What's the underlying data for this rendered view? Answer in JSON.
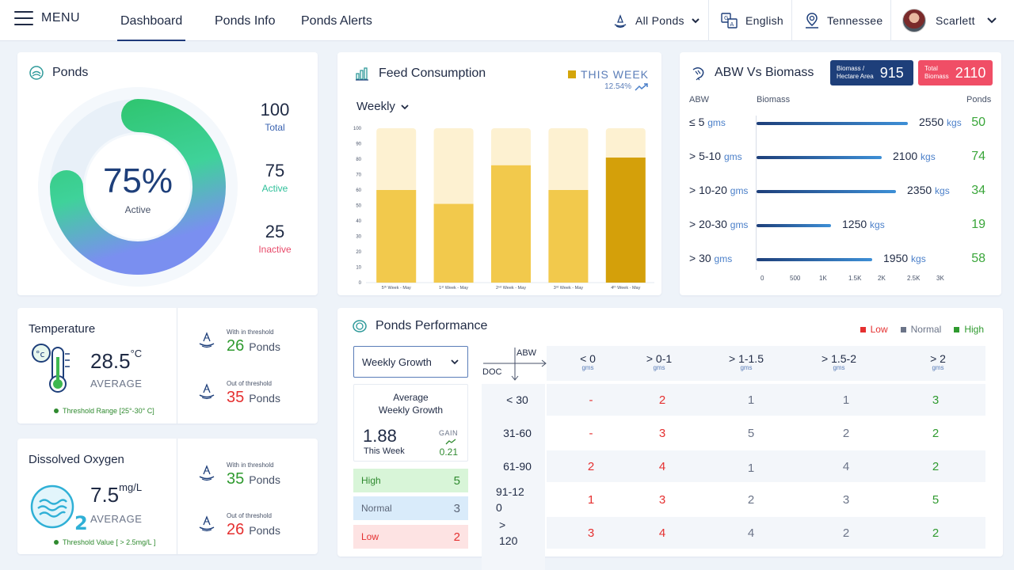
{
  "header": {
    "menu_label": "MENU",
    "tabs": [
      {
        "label": "Dashboard"
      },
      {
        "label": "Ponds Info"
      },
      {
        "label": "Ponds Alerts"
      }
    ],
    "pond_filter": "All Ponds",
    "language": "English",
    "location": "Tennessee",
    "user_name": "Scarlett"
  },
  "ponds": {
    "title": "Ponds",
    "active_percent": "75%",
    "active_percent_value": 75,
    "active_percent_label": "Active",
    "total_value": "100",
    "total_label": "Total",
    "active_value": "75",
    "active_label": "Active",
    "inactive_value": "25",
    "inactive_label": "Inactive",
    "colors": {
      "active_start": "#2fc56f",
      "active_end": "#6f8ff0",
      "track": "#e6eef8",
      "inactive_label": "#e84a6a",
      "active_label": "#2fc09a"
    }
  },
  "feed": {
    "title": "Feed Consumption",
    "legend_label": "THIS WEEK",
    "change_percent": "12.54%",
    "period_select": "Weekly",
    "colors": {
      "bar": "#f2c94c",
      "bar_bg": "#fdf1d1",
      "bar_highlight": "#d4a00a"
    }
  },
  "abw": {
    "title": "ABW Vs Biomass",
    "badge_biomass_label_1": "Biomass /",
    "badge_biomass_label_2": "Hectare Area",
    "badge_biomass_value": "915",
    "badge_total_label_1": "Total",
    "badge_total_label_2": "Biomass",
    "badge_total_value": "2110",
    "col_abw": "ABW",
    "col_biomass": "Biomass",
    "col_ponds": "Ponds",
    "unit_gms": "gms",
    "unit_kgs": "kgs",
    "rows": [
      {
        "range": "≤ 5",
        "biomass": "2550",
        "ponds": "50"
      },
      {
        "range": "> 5-10",
        "biomass": "2100",
        "ponds": "74"
      },
      {
        "range": "> 10-20",
        "biomass": "2350",
        "ponds": "34"
      },
      {
        "range": "> 20-30",
        "biomass": "1250",
        "ponds": "19"
      },
      {
        "range": "> 30",
        "biomass": "1950",
        "ponds": "58"
      }
    ],
    "biomass_values": [
      2550,
      2100,
      2350,
      1250,
      1950
    ],
    "axis_ticks": [
      "0",
      "500",
      "1K",
      "1.5K",
      "2K",
      "2.5K",
      "3K"
    ],
    "axis_max": 3000
  },
  "temperature": {
    "title": "Temperature",
    "value": "28.5",
    "unit": "°C",
    "avg_label": "AVERAGE",
    "range_text": "Threshold Range [25°-30° C]",
    "within_label": "With in threshold",
    "within_value": "26",
    "out_label": "Out of threshold",
    "out_value": "35",
    "ponds_word": "Ponds"
  },
  "dissolved_oxygen": {
    "title": "Dissolved Oxygen",
    "value": "7.5",
    "unit": "mg/L",
    "avg_label": "AVERAGE",
    "range_text": "Threshold Value [ > 2.5mg/L ]",
    "within_label": "With in threshold",
    "within_value": "35",
    "out_label": "Out of threshold",
    "out_value": "26",
    "ponds_word": "Ponds"
  },
  "performance": {
    "title": "Ponds Performance",
    "legend": [
      {
        "label": "Low",
        "color": "#e53030"
      },
      {
        "label": "Normal",
        "color": "#6b7488"
      },
      {
        "label": "High",
        "color": "#2f9a2f"
      }
    ],
    "select_value": "Weekly Growth",
    "avg_heading_1": "Average",
    "avg_heading_2": "Weekly Growth",
    "avg_value": "1.88",
    "avg_sub": "This Week",
    "gain_label": "GAIN",
    "gain_value": "0.21",
    "levels": [
      {
        "label": "High",
        "count": "5",
        "bg": "#d8f5d8",
        "fg": "#2f8a2f"
      },
      {
        "label": "Normal",
        "count": "3",
        "bg": "#d9ebfa",
        "fg": "#5b6577"
      },
      {
        "label": "Low",
        "count": "2",
        "bg": "#fde3e3",
        "fg": "#e53030"
      }
    ],
    "axis_abw": "ABW",
    "axis_doc": "DOC",
    "columns": [
      {
        "label": "< 0",
        "unit": "gms"
      },
      {
        "label": "> 0-1",
        "unit": "gms"
      },
      {
        "label": "> 1-1.5",
        "unit": "gms"
      },
      {
        "label": "> 1.5-2",
        "unit": "gms"
      },
      {
        "label": "> 2",
        "unit": "gms"
      }
    ],
    "rows": [
      {
        "doc": "< 30",
        "cells": [
          {
            "v": "-",
            "s": "low"
          },
          {
            "v": "2",
            "s": "low"
          },
          {
            "v": "1",
            "s": "normal"
          },
          {
            "v": "1",
            "s": "normal"
          },
          {
            "v": "3",
            "s": "high"
          }
        ]
      },
      {
        "doc": "31-60",
        "cells": [
          {
            "v": "-",
            "s": "low"
          },
          {
            "v": "3",
            "s": "low"
          },
          {
            "v": "5",
            "s": "normal"
          },
          {
            "v": "2",
            "s": "normal"
          },
          {
            "v": "2",
            "s": "high"
          }
        ]
      },
      {
        "doc": "61-90",
        "cells": [
          {
            "v": "2",
            "s": "low"
          },
          {
            "v": "4",
            "s": "low"
          },
          {
            "v": "1",
            "s": "normal"
          },
          {
            "v": "4",
            "s": "normal"
          },
          {
            "v": "2",
            "s": "high"
          }
        ]
      },
      {
        "doc_l1": "91-12",
        "doc_l2": "0",
        "cells": [
          {
            "v": "1",
            "s": "low"
          },
          {
            "v": "3",
            "s": "low"
          },
          {
            "v": "2",
            "s": "normal"
          },
          {
            "v": "3",
            "s": "normal"
          },
          {
            "v": "5",
            "s": "high"
          }
        ]
      },
      {
        "doc_l1": ">",
        "doc_l2": "120",
        "cells": [
          {
            "v": "3",
            "s": "low"
          },
          {
            "v": "4",
            "s": "low"
          },
          {
            "v": "4",
            "s": "normal"
          },
          {
            "v": "2",
            "s": "normal"
          },
          {
            "v": "2",
            "s": "high"
          }
        ]
      }
    ]
  },
  "chart_data": {
    "type": "bar",
    "categories": [
      "5ᵗʰ Week - May",
      "1ˢᵗ Week - May",
      "2ⁿᵈ Week - May",
      "3ʳᵈ Week - May",
      "4ᵗʰ Week - May"
    ],
    "series": [
      {
        "values": [
          60,
          51,
          76,
          60,
          81
        ]
      }
    ],
    "background_values": [
      100,
      100,
      100,
      100,
      100
    ],
    "highlight_index": 4,
    "y_ticks": [
      "0",
      "10",
      "20",
      "30",
      "40",
      "50",
      "60",
      "70",
      "80",
      "90",
      "100"
    ],
    "ylim": [
      0,
      100
    ],
    "grid": false,
    "title": "",
    "xlabel": "",
    "ylabel": ""
  }
}
